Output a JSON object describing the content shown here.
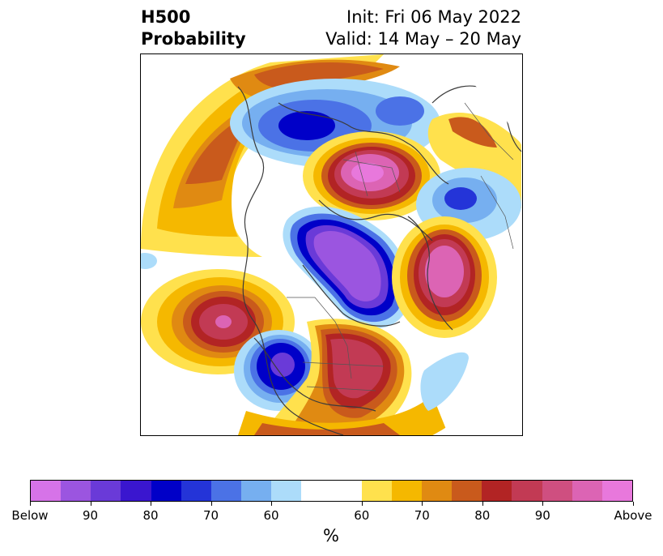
{
  "title": {
    "left_line1": "H500",
    "left_line2": "Probability",
    "right_line1": "Init: Fri 06 May 2022",
    "right_line2": "Valid: 14 May – 20 May"
  },
  "colorbar": {
    "colors": [
      "#d673e8",
      "#9b55e0",
      "#6a3ad8",
      "#3a16cf",
      "#0000c8",
      "#2434d8",
      "#4b72e6",
      "#76aff0",
      "#acdcfa",
      "#ffffff",
      "#ffe14d",
      "#f5b800",
      "#e08a12",
      "#c95a1c",
      "#b22424",
      "#c23a54",
      "#cf4f80",
      "#dc64b4",
      "#e878dc"
    ],
    "ticks": [
      {
        "label": "Below"
      },
      {
        "label": "90"
      },
      {
        "label": "80"
      },
      {
        "label": "70"
      },
      {
        "label": "60"
      },
      {
        "label": "60"
      },
      {
        "label": "70"
      },
      {
        "label": "80"
      },
      {
        "label": "90"
      },
      {
        "label": "Above"
      }
    ],
    "units": "%"
  }
}
